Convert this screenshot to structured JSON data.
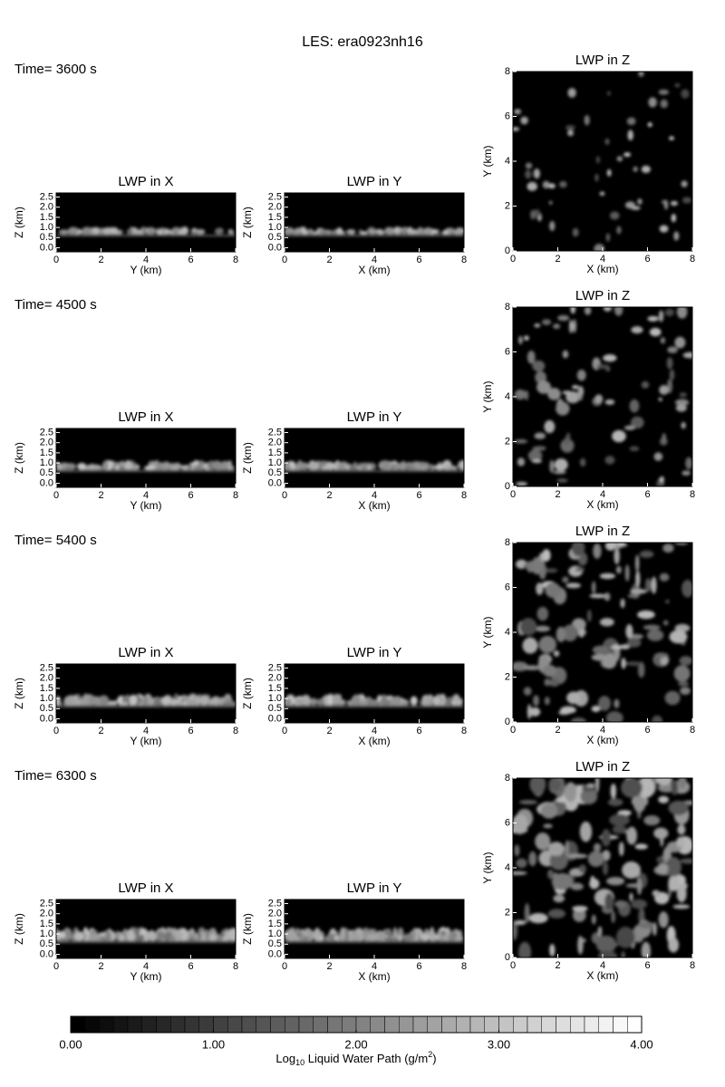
{
  "title": "LES: era0923nh16",
  "rows": [
    {
      "time_label": "Time= 3600 s",
      "panels": [
        {
          "title": "LWP in X",
          "xlabel": "Y (km)",
          "ylabel": "Z (km)",
          "xlim": [
            0,
            8
          ],
          "ylim": [
            -0.2,
            2.7
          ],
          "xticks": [
            0,
            2,
            4,
            6,
            8
          ],
          "yticks": [
            {
              "value": 0,
              "label": "0.0"
            },
            0.5,
            {
              "value": 1,
              "label": "1.0"
            },
            1.5,
            {
              "value": 2,
              "label": "2.0"
            },
            2.5
          ]
        },
        {
          "title": "LWP in Y",
          "xlabel": "X (km)",
          "ylabel": "Z (km)",
          "xlim": [
            0,
            8
          ],
          "ylim": [
            -0.2,
            2.7
          ],
          "xticks": [
            0,
            2,
            4,
            6,
            8
          ],
          "yticks": [
            {
              "value": 0,
              "label": "0.0"
            },
            0.5,
            {
              "value": 1,
              "label": "1.0"
            },
            1.5,
            {
              "value": 2,
              "label": "2.0"
            },
            2.5
          ]
        },
        {
          "title": "LWP in Z",
          "xlabel": "X (km)",
          "ylabel": "Y (km)",
          "xlim": [
            0,
            8
          ],
          "ylim": [
            0,
            8
          ],
          "xticks": [
            0,
            2,
            4,
            6,
            8
          ],
          "yticks": [
            0,
            2,
            4,
            6,
            8
          ]
        }
      ]
    },
    {
      "time_label": "Time= 4500 s",
      "panels": [
        {
          "title": "LWP in X",
          "xlabel": "Y (km)",
          "ylabel": "Z (km)",
          "xlim": [
            0,
            8
          ],
          "ylim": [
            -0.2,
            2.7
          ],
          "xticks": [
            0,
            2,
            4,
            6,
            8
          ],
          "yticks": [
            {
              "value": 0,
              "label": "0.0"
            },
            0.5,
            {
              "value": 1,
              "label": "1.0"
            },
            1.5,
            {
              "value": 2,
              "label": "2.0"
            },
            2.5
          ]
        },
        {
          "title": "LWP in Y",
          "xlabel": "X (km)",
          "ylabel": "Z (km)",
          "xlim": [
            0,
            8
          ],
          "ylim": [
            -0.2,
            2.7
          ],
          "xticks": [
            0,
            2,
            4,
            6,
            8
          ],
          "yticks": [
            {
              "value": 0,
              "label": "0.0"
            },
            0.5,
            {
              "value": 1,
              "label": "1.0"
            },
            1.5,
            {
              "value": 2,
              "label": "2.0"
            },
            2.5
          ]
        },
        {
          "title": "LWP in Z",
          "xlabel": "X (km)",
          "ylabel": "Y (km)",
          "xlim": [
            0,
            8
          ],
          "ylim": [
            0,
            8
          ],
          "xticks": [
            0,
            2,
            4,
            6,
            8
          ],
          "yticks": [
            0,
            2,
            4,
            6,
            8
          ]
        }
      ]
    },
    {
      "time_label": "Time= 5400 s",
      "panels": [
        {
          "title": "LWP in X",
          "xlabel": "Y (km)",
          "ylabel": "Z (km)",
          "xlim": [
            0,
            8
          ],
          "ylim": [
            -0.2,
            2.7
          ],
          "xticks": [
            0,
            2,
            4,
            6,
            8
          ],
          "yticks": [
            {
              "value": 0,
              "label": "0.0"
            },
            0.5,
            {
              "value": 1,
              "label": "1.0"
            },
            1.5,
            {
              "value": 2,
              "label": "2.0"
            },
            2.5
          ]
        },
        {
          "title": "LWP in Y",
          "xlabel": "X (km)",
          "ylabel": "Z (km)",
          "xlim": [
            0,
            8
          ],
          "ylim": [
            -0.2,
            2.7
          ],
          "xticks": [
            0,
            2,
            4,
            6,
            8
          ],
          "yticks": [
            {
              "value": 0,
              "label": "0.0"
            },
            0.5,
            {
              "value": 1,
              "label": "1.0"
            },
            1.5,
            {
              "value": 2,
              "label": "2.0"
            },
            2.5
          ]
        },
        {
          "title": "LWP in Z",
          "xlabel": "X (km)",
          "ylabel": "Y (km)",
          "xlim": [
            0,
            8
          ],
          "ylim": [
            0,
            8
          ],
          "xticks": [
            0,
            2,
            4,
            6,
            8
          ],
          "yticks": [
            0,
            2,
            4,
            6,
            8
          ]
        }
      ]
    },
    {
      "time_label": "Time= 6300 s",
      "panels": [
        {
          "title": "LWP in X",
          "xlabel": "Y (km)",
          "ylabel": "Z (km)",
          "xlim": [
            0,
            8
          ],
          "ylim": [
            -0.2,
            2.7
          ],
          "xticks": [
            0,
            2,
            4,
            6,
            8
          ],
          "yticks": [
            {
              "value": 0,
              "label": "0.0"
            },
            0.5,
            {
              "value": 1,
              "label": "1.0"
            },
            1.5,
            {
              "value": 2,
              "label": "2.0"
            },
            2.5
          ]
        },
        {
          "title": "LWP in Y",
          "xlabel": "X (km)",
          "ylabel": "Z (km)",
          "xlim": [
            0,
            8
          ],
          "ylim": [
            -0.2,
            2.7
          ],
          "xticks": [
            0,
            2,
            4,
            6,
            8
          ],
          "yticks": [
            {
              "value": 0,
              "label": "0.0"
            },
            0.5,
            {
              "value": 1,
              "label": "1.0"
            },
            1.5,
            {
              "value": 2,
              "label": "2.0"
            },
            2.5
          ]
        },
        {
          "title": "LWP in Z",
          "xlabel": "X (km)",
          "ylabel": "Y (km)",
          "xlim": [
            0,
            8
          ],
          "ylim": [
            0,
            8
          ],
          "xticks": [
            0,
            2,
            4,
            6,
            8
          ],
          "yticks": [
            0,
            2,
            4,
            6,
            8
          ]
        }
      ]
    }
  ],
  "colorbar": {
    "clim": [
      0,
      4
    ],
    "ticks": [
      {
        "value": 0,
        "label": "0.00"
      },
      {
        "value": 1,
        "label": "1.00"
      },
      {
        "value": 2,
        "label": "2.00"
      },
      {
        "value": 3,
        "label": "3.00"
      },
      {
        "value": 4,
        "label": "4.00"
      }
    ],
    "label": {
      "prefix": "Log",
      "sub": "10",
      "middle": " Liquid Water Path (g/m",
      "sup": "2",
      "suffix": ")"
    }
  }
}
